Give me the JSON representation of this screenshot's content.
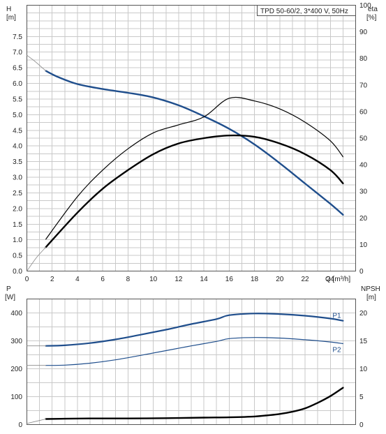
{
  "colors": {
    "blue": "#1f4e8c",
    "black": "#000000",
    "grid": "#c9c9c9",
    "thin": "#888888"
  },
  "chart_data": [
    {
      "type": "line",
      "legend_label": "TPD 50-60/2, 3*400 V, 50Hz",
      "left_axis": {
        "title_top": "H",
        "title_unit": "[m]",
        "ticks": [
          "0.0",
          "0.5",
          "1.0",
          "1.5",
          "2.0",
          "2.5",
          "3.0",
          "3.5",
          "4.0",
          "4.5",
          "5.0",
          "5.5",
          "6.0",
          "6.5",
          "7.0",
          "7.5"
        ],
        "ylim": [
          0,
          8.5
        ]
      },
      "right_axis": {
        "title_top": "eta",
        "title_unit": "[%]",
        "ticks": [
          "0",
          "10",
          "20",
          "30",
          "40",
          "50",
          "60",
          "70",
          "80",
          "90",
          "100"
        ],
        "ylim": [
          0,
          100
        ]
      },
      "x_axis": {
        "label": "Q [m³/h]",
        "ticks": [
          "0",
          "2",
          "4",
          "6",
          "8",
          "10",
          "12",
          "14",
          "16",
          "18",
          "20",
          "22",
          "24"
        ],
        "xlim": [
          0,
          26
        ]
      },
      "series": [
        {
          "id": "H",
          "axis": "left",
          "color": "#1f4e8c",
          "width": 2.4,
          "x": [
            1.5,
            2.5,
            4,
            6,
            8,
            10,
            12,
            14,
            16,
            18,
            20,
            22,
            24,
            25
          ],
          "y": [
            6.4,
            6.2,
            5.98,
            5.82,
            5.7,
            5.55,
            5.3,
            4.95,
            4.55,
            4.05,
            3.45,
            2.8,
            2.15,
            1.8
          ]
        },
        {
          "id": "H-extrapolated",
          "axis": "left",
          "color": "#888888",
          "width": 0.8,
          "x": [
            0,
            0.5,
            1,
            1.5
          ],
          "y": [
            6.9,
            6.75,
            6.58,
            6.4
          ]
        },
        {
          "id": "eta-pump",
          "axis": "right",
          "color": "#000000",
          "width": 1.2,
          "x": [
            1.5,
            4,
            6,
            8,
            10,
            12,
            14,
            16,
            18,
            20,
            22,
            24,
            25
          ],
          "y": [
            12,
            28,
            38,
            46,
            52,
            55,
            58,
            65,
            64,
            61,
            56,
            49,
            43
          ]
        },
        {
          "id": "eta-total",
          "axis": "right",
          "color": "#000000",
          "width": 2.4,
          "x": [
            1.5,
            4,
            6,
            8,
            10,
            12,
            14,
            16,
            18,
            20,
            22,
            24,
            25
          ],
          "y": [
            9,
            22,
            31,
            38,
            44,
            48,
            50,
            51,
            50.5,
            48,
            44,
            38,
            33
          ]
        },
        {
          "id": "eta-extrapolated",
          "axis": "right",
          "color": "#888888",
          "width": 0.8,
          "x": [
            0,
            0.75,
            1.5
          ],
          "y": [
            0,
            5,
            9
          ]
        }
      ]
    },
    {
      "type": "line",
      "left_axis": {
        "title_top": "P",
        "title_unit": "[W]",
        "ticks": [
          "0",
          "100",
          "200",
          "300",
          "400"
        ],
        "ylim": [
          0,
          450
        ]
      },
      "right_axis": {
        "title_top": "NPSH",
        "title_unit": "[m]",
        "ticks": [
          "0",
          "5",
          "10",
          "15",
          "20"
        ],
        "ylim": [
          0,
          22.5
        ]
      },
      "x_axis": {
        "xlim": [
          0,
          26
        ]
      },
      "series": [
        {
          "id": "P1",
          "label": "P1",
          "axis": "left",
          "color": "#1f4e8c",
          "width": 2.2,
          "x": [
            1.5,
            3,
            5,
            7,
            9,
            11,
            13,
            15,
            16,
            18,
            20,
            22,
            24,
            25
          ],
          "y": [
            282,
            284,
            292,
            305,
            322,
            340,
            360,
            378,
            392,
            398,
            396,
            390,
            380,
            372
          ]
        },
        {
          "id": "P1-extrapolated",
          "axis": "left",
          "color": "#888888",
          "width": 0.8,
          "x": [
            0,
            1.5
          ],
          "y": [
            282,
            282
          ]
        },
        {
          "id": "P2",
          "label": "P2",
          "axis": "left",
          "color": "#1f4e8c",
          "width": 1.2,
          "x": [
            1.5,
            3,
            5,
            7,
            9,
            11,
            13,
            15,
            16,
            18,
            20,
            22,
            24,
            25
          ],
          "y": [
            212,
            213,
            220,
            232,
            248,
            265,
            282,
            298,
            308,
            312,
            310,
            304,
            296,
            290
          ]
        },
        {
          "id": "P2-extrapolated",
          "axis": "left",
          "color": "#888888",
          "width": 0.8,
          "x": [
            0,
            1.5
          ],
          "y": [
            212,
            212
          ]
        },
        {
          "id": "NPSH",
          "axis": "right",
          "color": "#000000",
          "width": 2.4,
          "x": [
            1.5,
            3,
            5,
            8,
            11,
            14,
            16,
            18,
            19,
            20,
            21,
            22,
            23,
            24,
            25
          ],
          "y": [
            1.0,
            1.05,
            1.1,
            1.1,
            1.15,
            1.25,
            1.3,
            1.45,
            1.65,
            1.9,
            2.3,
            2.9,
            3.9,
            5.1,
            6.6
          ]
        },
        {
          "id": "NPSH-extrapolated",
          "axis": "right",
          "color": "#888888",
          "width": 0.8,
          "x": [
            0,
            1.5
          ],
          "y": [
            0.2,
            1.0
          ]
        }
      ]
    }
  ]
}
